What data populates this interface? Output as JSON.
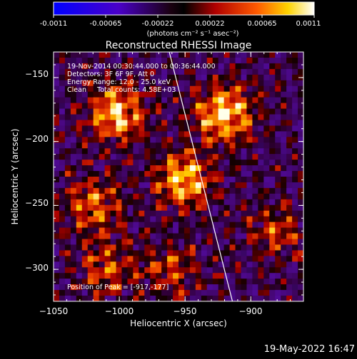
{
  "colorbar": {
    "tick_labels": [
      "-0.0011",
      "-0.00065",
      "-0.00022",
      "0.00022",
      "0.00065",
      "0.0011"
    ],
    "units_label": "(photons cm⁻² s⁻¹ asec⁻²)",
    "range": [
      -0.0011,
      0.0011
    ]
  },
  "chart_data": {
    "type": "heatmap",
    "title": "Reconstructed RHESSI Image",
    "xlabel": "Heliocentric X (arcsec)",
    "ylabel": "Heliocentric Y (arcsec)",
    "xlim": [
      -1050,
      -860
    ],
    "ylim": [
      -325,
      -130
    ],
    "x_ticks": [
      -1050,
      -1000,
      -950,
      -900
    ],
    "y_ticks": [
      -150,
      -200,
      -250,
      -300
    ],
    "x_tick_labels": [
      "−1050",
      "−1000",
      "−950",
      "−900"
    ],
    "y_tick_labels": [
      "−150",
      "−200",
      "−250",
      "−300"
    ],
    "annotations": [
      "19-Nov-2014 00:30:44.000 to 00:36:44.000",
      "Detectors: 3F 6F 9F, Att 0",
      "Energy Range: 12.0 - 25.0 keV",
      "Clean     Total counts: 4.58E+03"
    ],
    "peak_label": "Position of Peak = [-917,-177]",
    "peak_position": [
      -917,
      -177
    ],
    "limb_line": {
      "x": [
        -962,
        -914
      ],
      "y": [
        -130,
        -325
      ]
    },
    "bright_sources": [
      {
        "x": -1002,
        "y": -178,
        "intensity": 0.95
      },
      {
        "x": -920,
        "y": -178,
        "intensity": 1.0
      },
      {
        "x": -950,
        "y": -230,
        "intensity": 0.9
      },
      {
        "x": -1020,
        "y": -250,
        "intensity": 0.7
      },
      {
        "x": -1010,
        "y": -300,
        "intensity": 0.55
      },
      {
        "x": -880,
        "y": -270,
        "intensity": 0.5
      },
      {
        "x": -960,
        "y": -300,
        "intensity": 0.5
      }
    ]
  },
  "footer": {
    "timestamp": "19-May-2022 16:47"
  }
}
